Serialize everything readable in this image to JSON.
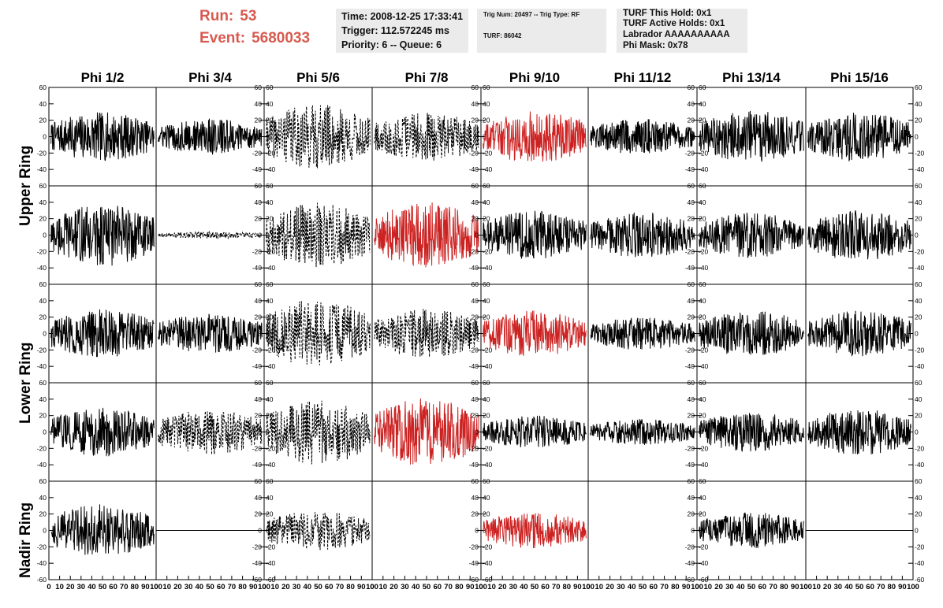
{
  "header": {
    "run_label": "Run:",
    "run_value": "53",
    "event_label": "Event:",
    "event_value": "5680033",
    "time": "Time: 2008-12-25 17:33:41",
    "trigger": "Trigger: 112.572245 ms",
    "priority_queue": "Priority: 6 -- Queue: 6",
    "trig_num_type": "Trig Num: 20497 -- Trig Type: RF",
    "turf_id": "TURF: 86042",
    "turf_this_hold": "TURF This Hold: 0x1",
    "turf_active_holds": "TURF Active Holds: 0x1",
    "labrador": "Labrador AAAAAAAAAA",
    "phi_mask": "Phi Mask: 0x78"
  },
  "colors": {
    "highlight": "#cc2222",
    "normal": "#000000",
    "header_red": "#d85a4f",
    "box_bg": "#ebebeb"
  },
  "chart_data": {
    "type": "line",
    "title": "",
    "columns": [
      "Phi 1/2",
      "Phi 3/4",
      "Phi 5/6",
      "Phi 7/8",
      "Phi 9/10",
      "Phi 11/12",
      "Phi 13/14",
      "Phi 15/16"
    ],
    "row_labels": [
      "Upper Ring",
      "Lower Ring",
      "Nadir Ring"
    ],
    "xlim": [
      0,
      100
    ],
    "ylim": [
      -60,
      60
    ],
    "x_ticks": [
      0,
      10,
      20,
      30,
      40,
      50,
      60,
      70,
      80,
      90,
      100
    ],
    "x_tick_labels": [
      "0",
      "10",
      "20",
      "30",
      "40",
      "50",
      "60",
      "70",
      "80",
      "90",
      "100"
    ],
    "y_ticks": [
      -60,
      -40,
      -20,
      0,
      20,
      40,
      60
    ],
    "y_tick_labels": [
      "-60",
      "-40",
      "-20",
      "0",
      "20",
      "40",
      "60"
    ],
    "panels": [
      {
        "row": 0,
        "col": 0,
        "style": "solid",
        "color": "black",
        "amplitude": 30
      },
      {
        "row": 0,
        "col": 1,
        "style": "solid",
        "color": "black",
        "amplitude": 22
      },
      {
        "row": 0,
        "col": 2,
        "style": "dashed",
        "color": "black",
        "amplitude": 40
      },
      {
        "row": 0,
        "col": 3,
        "style": "dashed",
        "color": "black",
        "amplitude": 30
      },
      {
        "row": 0,
        "col": 4,
        "style": "solid",
        "color": "red",
        "amplitude": 32
      },
      {
        "row": 0,
        "col": 5,
        "style": "solid",
        "color": "black",
        "amplitude": 22
      },
      {
        "row": 0,
        "col": 6,
        "style": "solid",
        "color": "black",
        "amplitude": 32
      },
      {
        "row": 0,
        "col": 7,
        "style": "solid",
        "color": "black",
        "amplitude": 30
      },
      {
        "row": 1,
        "col": 0,
        "style": "solid",
        "color": "black",
        "amplitude": 38
      },
      {
        "row": 1,
        "col": 1,
        "style": "dashed",
        "color": "black",
        "amplitude": 4
      },
      {
        "row": 1,
        "col": 2,
        "style": "dashed",
        "color": "black",
        "amplitude": 40
      },
      {
        "row": 1,
        "col": 3,
        "style": "solid",
        "color": "red",
        "amplitude": 40
      },
      {
        "row": 1,
        "col": 4,
        "style": "solid",
        "color": "black",
        "amplitude": 30
      },
      {
        "row": 1,
        "col": 5,
        "style": "solid",
        "color": "black",
        "amplitude": 28
      },
      {
        "row": 1,
        "col": 6,
        "style": "solid",
        "color": "black",
        "amplitude": 28
      },
      {
        "row": 1,
        "col": 7,
        "style": "solid",
        "color": "black",
        "amplitude": 32
      },
      {
        "row": 2,
        "col": 0,
        "style": "solid",
        "color": "black",
        "amplitude": 30
      },
      {
        "row": 2,
        "col": 1,
        "style": "solid",
        "color": "black",
        "amplitude": 24
      },
      {
        "row": 2,
        "col": 2,
        "style": "dashed",
        "color": "black",
        "amplitude": 42
      },
      {
        "row": 2,
        "col": 3,
        "style": "dashed",
        "color": "black",
        "amplitude": 30
      },
      {
        "row": 2,
        "col": 4,
        "style": "solid",
        "color": "red",
        "amplitude": 28
      },
      {
        "row": 2,
        "col": 5,
        "style": "solid",
        "color": "black",
        "amplitude": 20
      },
      {
        "row": 2,
        "col": 6,
        "style": "solid",
        "color": "black",
        "amplitude": 28
      },
      {
        "row": 2,
        "col": 7,
        "style": "solid",
        "color": "black",
        "amplitude": 28
      },
      {
        "row": 3,
        "col": 0,
        "style": "solid",
        "color": "black",
        "amplitude": 30
      },
      {
        "row": 3,
        "col": 1,
        "style": "dashed",
        "color": "black",
        "amplitude": 28
      },
      {
        "row": 3,
        "col": 2,
        "style": "dashed",
        "color": "black",
        "amplitude": 40
      },
      {
        "row": 3,
        "col": 3,
        "style": "solid",
        "color": "red",
        "amplitude": 42
      },
      {
        "row": 3,
        "col": 4,
        "style": "solid",
        "color": "black",
        "amplitude": 20
      },
      {
        "row": 3,
        "col": 5,
        "style": "solid",
        "color": "black",
        "amplitude": 16
      },
      {
        "row": 3,
        "col": 6,
        "style": "solid",
        "color": "black",
        "amplitude": 24
      },
      {
        "row": 3,
        "col": 7,
        "style": "solid",
        "color": "black",
        "amplitude": 28
      },
      {
        "row": 4,
        "col": 0,
        "style": "solid",
        "color": "black",
        "amplitude": 32
      },
      {
        "row": 4,
        "col": 1,
        "style": "flat",
        "color": "black",
        "amplitude": 0
      },
      {
        "row": 4,
        "col": 2,
        "style": "dashed",
        "color": "black",
        "amplitude": 24
      },
      {
        "row": 4,
        "col": 3,
        "style": "none",
        "color": "black",
        "amplitude": 0
      },
      {
        "row": 4,
        "col": 4,
        "style": "solid",
        "color": "red",
        "amplitude": 22
      },
      {
        "row": 4,
        "col": 5,
        "style": "none",
        "color": "black",
        "amplitude": 0
      },
      {
        "row": 4,
        "col": 6,
        "style": "solid",
        "color": "black",
        "amplitude": 22
      },
      {
        "row": 4,
        "col": 7,
        "style": "flat",
        "color": "black",
        "amplitude": 0
      }
    ]
  }
}
